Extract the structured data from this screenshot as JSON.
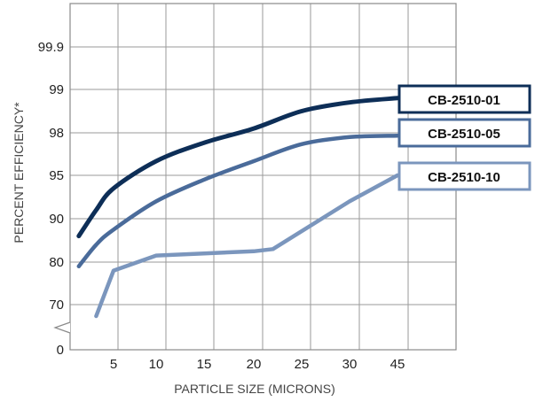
{
  "chart_data": {
    "type": "line",
    "xlabel": "PARTICLE SIZE (MICRONS)",
    "ylabel": "PERCENT EFFICIENCY*",
    "x_tick_labels": [
      "5",
      "10",
      "15",
      "20",
      "25",
      "30",
      "45"
    ],
    "y_tick_labels": [
      "0",
      "70",
      "80",
      "90",
      "95",
      "98",
      "99",
      "99.9"
    ],
    "axis_break": "y between 0 and 70",
    "grid": true,
    "legend": "right, labels at line ends",
    "series": [
      {
        "name": "CB-2510-01",
        "color": "#0d2e57",
        "points": [
          [
            1,
            86
          ],
          [
            3,
            91
          ],
          [
            5,
            93.5
          ],
          [
            10,
            96
          ],
          [
            15,
            97.3
          ],
          [
            20,
            98.1
          ],
          [
            25,
            98.5
          ],
          [
            30,
            98.7
          ],
          [
            45,
            98.8
          ]
        ]
      },
      {
        "name": "CB-2510-05",
        "color": "#4a6b9a",
        "points": [
          [
            1,
            79
          ],
          [
            3,
            84
          ],
          [
            5,
            87.5
          ],
          [
            10,
            92
          ],
          [
            15,
            94.5
          ],
          [
            20,
            96
          ],
          [
            25,
            97.2
          ],
          [
            30,
            97.7
          ],
          [
            45,
            97.8
          ]
        ]
      },
      {
        "name": "CB-2510-10",
        "color": "#7b96bd",
        "points": [
          [
            3,
            65
          ],
          [
            5,
            78
          ],
          [
            10,
            81.5
          ],
          [
            15,
            82
          ],
          [
            20,
            82.5
          ],
          [
            22,
            83
          ],
          [
            30,
            92
          ],
          [
            45,
            95
          ]
        ]
      }
    ]
  }
}
